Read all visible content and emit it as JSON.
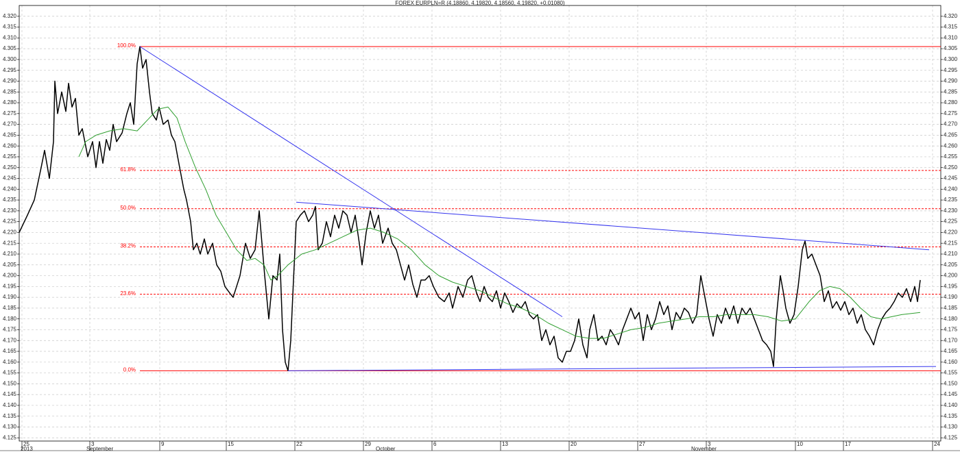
{
  "chart_data": {
    "type": "line",
    "title": "FOREX EURPLN=R (4.18860, 4.19820, 4.18560, 4.19820, +0.01080)",
    "xlim": [
      28,
      1372
    ],
    "ylim": [
      4.1235,
      4.325
    ],
    "grid": true,
    "xticks": [
      {
        "value": 32,
        "label": "25"
      },
      {
        "value": 131,
        "label": "3"
      },
      {
        "value": 233,
        "label": "9"
      },
      {
        "value": 330,
        "label": "15"
      },
      {
        "value": 430,
        "label": "22"
      },
      {
        "value": 530,
        "label": "29"
      },
      {
        "value": 630,
        "label": "6"
      },
      {
        "value": 730,
        "label": "13"
      },
      {
        "value": 830,
        "label": "20"
      },
      {
        "value": 930,
        "label": "27"
      },
      {
        "value": 1030,
        "label": "3"
      },
      {
        "value": 1160,
        "label": "10"
      },
      {
        "value": 1230,
        "label": "17"
      },
      {
        "value": 1360,
        "label": "24"
      }
    ],
    "x_period_labels": [
      {
        "value": 32,
        "label": "2013"
      },
      {
        "value": 128,
        "label": "September"
      },
      {
        "value": 550,
        "label": "October"
      },
      {
        "value": 1010,
        "label": "November"
      }
    ],
    "yticks": [
      4.125,
      {
        "value": 4.13,
        "label": "4.130"
      },
      4.135,
      {
        "value": 4.14,
        "label": "4.140"
      },
      4.145,
      {
        "value": 4.15,
        "label": "4.150"
      },
      4.155,
      {
        "value": 4.16,
        "label": "4.160"
      },
      4.165,
      {
        "value": 4.17,
        "label": "4.170"
      },
      4.175,
      {
        "value": 4.18,
        "label": "4.180"
      },
      4.185,
      {
        "value": 4.19,
        "label": "4.190"
      },
      4.195,
      {
        "value": 4.2,
        "label": "4.200"
      },
      4.205,
      {
        "value": 4.21,
        "label": "4.210"
      },
      4.215,
      {
        "value": 4.22,
        "label": "4.220"
      },
      4.225,
      {
        "value": 4.23,
        "label": "4.230"
      },
      4.235,
      {
        "value": 4.24,
        "label": "4.240"
      },
      4.245,
      {
        "value": 4.25,
        "label": "4.250"
      },
      4.255,
      {
        "value": 4.26,
        "label": "4.260"
      },
      4.265,
      {
        "value": 4.27,
        "label": "4.270"
      },
      4.275,
      {
        "value": 4.28,
        "label": "4.280"
      },
      4.285,
      {
        "value": 4.29,
        "label": "4.290"
      },
      4.295,
      {
        "value": 4.3,
        "label": "4.300"
      },
      4.305,
      {
        "value": 4.31,
        "label": "4.310"
      },
      4.315,
      {
        "value": 4.32,
        "label": "4.320"
      }
    ],
    "series": [
      {
        "color": "#000000",
        "x": [
          28,
          40,
          50,
          60,
          65,
          72,
          78,
          80,
          84,
          90,
          96,
          100,
          105,
          110,
          115,
          120,
          128,
          135,
          140,
          145,
          150,
          155,
          160,
          165,
          170,
          178,
          185,
          190,
          195,
          200,
          204,
          208,
          213,
          218,
          222,
          228,
          232,
          238,
          245,
          250,
          255,
          262,
          268,
          272,
          278,
          282,
          287,
          292,
          298,
          303,
          310,
          316,
          322,
          328,
          335,
          340,
          345,
          350,
          358,
          365,
          372,
          378,
          382,
          386,
          392,
          398,
          404,
          408,
          412,
          416,
          420,
          424,
          428,
          432,
          438,
          444,
          450,
          456,
          460,
          464,
          470,
          476,
          482,
          488,
          494,
          500,
          506,
          512,
          518,
          524,
          528,
          534,
          540,
          546,
          552,
          558,
          566,
          572,
          578,
          584,
          590,
          596,
          602,
          608,
          614,
          620,
          626,
          632,
          640,
          648,
          655,
          660,
          668,
          675,
          682,
          688,
          695,
          700,
          706,
          712,
          718,
          724,
          730,
          736,
          742,
          748,
          754,
          760,
          766,
          772,
          778,
          784,
          790,
          796,
          802,
          808,
          814,
          820,
          826,
          832,
          838,
          844,
          850,
          856,
          860,
          866,
          872,
          878,
          884,
          890,
          896,
          902,
          908,
          914,
          920,
          926,
          932,
          938,
          944,
          950,
          956,
          962,
          968,
          974,
          980,
          986,
          992,
          998,
          1004,
          1010,
          1016,
          1022,
          1028,
          1034,
          1040,
          1046,
          1052,
          1058,
          1064,
          1070,
          1076,
          1082,
          1088,
          1094,
          1100,
          1106,
          1112,
          1118,
          1124,
          1128,
          1132,
          1138,
          1142,
          1146,
          1152,
          1158,
          1164,
          1170,
          1174,
          1178,
          1184,
          1190,
          1196,
          1202,
          1208,
          1214,
          1220,
          1226,
          1232,
          1238,
          1244,
          1250,
          1256,
          1262,
          1268,
          1274,
          1280,
          1286,
          1292,
          1298,
          1304,
          1310,
          1316,
          1322,
          1328,
          1334,
          1338,
          1342
        ],
        "values": [
          4.22,
          4.228,
          4.235,
          4.25,
          4.258,
          4.245,
          4.262,
          4.29,
          4.275,
          4.285,
          4.276,
          4.289,
          4.278,
          4.282,
          4.265,
          4.268,
          4.255,
          4.262,
          4.25,
          4.262,
          4.252,
          4.263,
          4.258,
          4.27,
          4.262,
          4.266,
          4.275,
          4.28,
          4.27,
          4.298,
          4.306,
          4.296,
          4.3,
          4.285,
          4.275,
          4.272,
          4.278,
          4.27,
          4.272,
          4.265,
          4.262,
          4.25,
          4.24,
          4.235,
          4.225,
          4.212,
          4.215,
          4.21,
          4.217,
          4.21,
          4.215,
          4.205,
          4.202,
          4.195,
          4.192,
          4.19,
          4.195,
          4.2,
          4.215,
          4.208,
          4.212,
          4.23,
          4.215,
          4.2,
          4.18,
          4.2,
          4.198,
          4.21,
          4.175,
          4.16,
          4.156,
          4.17,
          4.198,
          4.225,
          4.228,
          4.23,
          4.225,
          4.228,
          4.232,
          4.212,
          4.215,
          4.225,
          4.218,
          4.228,
          4.222,
          4.23,
          4.228,
          4.22,
          4.228,
          4.215,
          4.205,
          4.22,
          4.23,
          4.222,
          4.228,
          4.215,
          4.222,
          4.215,
          4.212,
          4.205,
          4.198,
          4.205,
          4.196,
          4.19,
          4.198,
          4.198,
          4.2,
          4.195,
          4.19,
          4.188,
          4.192,
          4.185,
          4.195,
          4.19,
          4.198,
          4.2,
          4.192,
          4.188,
          4.195,
          4.19,
          4.188,
          4.193,
          4.185,
          4.192,
          4.188,
          4.183,
          4.187,
          4.185,
          4.188,
          4.182,
          4.18,
          4.182,
          4.17,
          4.175,
          4.168,
          4.172,
          4.162,
          4.16,
          4.165,
          4.165,
          4.17,
          4.18,
          4.168,
          4.162,
          4.175,
          4.182,
          4.17,
          4.172,
          4.168,
          4.175,
          4.172,
          4.168,
          4.175,
          4.18,
          4.185,
          4.18,
          4.183,
          4.17,
          4.182,
          4.175,
          4.18,
          4.188,
          4.182,
          4.186,
          4.175,
          4.183,
          4.18,
          4.185,
          4.183,
          4.178,
          4.182,
          4.2,
          4.19,
          4.18,
          4.172,
          4.182,
          4.178,
          4.185,
          4.18,
          4.186,
          4.178,
          4.185,
          4.182,
          4.185,
          4.18,
          4.175,
          4.17,
          4.168,
          4.165,
          4.158,
          4.18,
          4.2,
          4.193,
          4.185,
          4.178,
          4.182,
          4.195,
          4.212,
          4.216,
          4.208,
          4.21,
          4.205,
          4.2,
          4.188,
          4.193,
          4.185,
          4.188,
          4.184,
          4.188,
          4.182,
          4.185,
          4.178,
          4.182,
          4.175,
          4.172,
          4.168,
          4.175,
          4.18,
          4.183,
          4.185,
          4.188,
          4.192,
          4.19,
          4.194,
          4.188,
          4.195,
          4.188,
          4.198
        ]
      },
      {
        "color": "#2e9e2e",
        "x": [
          115,
          125,
          140,
          160,
          180,
          200,
          215,
          230,
          245,
          258,
          270,
          285,
          300,
          315,
          330,
          345,
          360,
          372,
          385,
          395,
          405,
          420,
          440,
          460,
          480,
          500,
          520,
          540,
          560,
          580,
          600,
          620,
          640,
          660,
          680,
          700,
          720,
          740,
          760,
          780,
          800,
          820,
          840,
          860,
          880,
          900,
          920,
          940,
          960,
          980,
          1000,
          1020,
          1040,
          1060,
          1080,
          1100,
          1120,
          1140,
          1160,
          1180,
          1195,
          1210,
          1225,
          1240,
          1255,
          1270,
          1285,
          1300,
          1315,
          1342
        ],
        "values": [
          4.255,
          4.262,
          4.265,
          4.267,
          4.268,
          4.267,
          4.272,
          4.277,
          4.278,
          4.273,
          4.262,
          4.25,
          4.24,
          4.228,
          4.22,
          4.212,
          4.207,
          4.208,
          4.205,
          4.198,
          4.2,
          4.205,
          4.21,
          4.212,
          4.215,
          4.218,
          4.221,
          4.222,
          4.22,
          4.217,
          4.212,
          4.205,
          4.2,
          4.197,
          4.195,
          4.193,
          4.19,
          4.187,
          4.185,
          4.182,
          4.178,
          4.175,
          4.172,
          4.171,
          4.171,
          4.173,
          4.175,
          4.176,
          4.178,
          4.179,
          4.18,
          4.181,
          4.181,
          4.182,
          4.182,
          4.182,
          4.181,
          4.179,
          4.18,
          4.188,
          4.193,
          4.195,
          4.194,
          4.19,
          4.185,
          4.181,
          4.18,
          4.181,
          4.182,
          4.183
        ]
      }
    ],
    "trendlines": [
      {
        "color": "#3333ee",
        "x": [
          204,
          820
        ],
        "values": [
          4.306,
          4.181
        ]
      },
      {
        "color": "#3333ee",
        "x": [
          432,
          1355
        ],
        "values": [
          4.234,
          4.212
        ]
      },
      {
        "color": "#3333ee",
        "x": [
          420,
          1365
        ],
        "values": [
          4.156,
          4.158
        ]
      }
    ],
    "fib": {
      "x": 204,
      "color": "#ff0000",
      "levels": [
        {
          "label": "100.0%",
          "value": 4.306,
          "solid": true
        },
        {
          "label": "61.8%",
          "value": 4.2487,
          "solid": false
        },
        {
          "label": "50.0%",
          "value": 4.231,
          "solid": false
        },
        {
          "label": "38.2%",
          "value": 4.2133,
          "solid": false
        },
        {
          "label": "23.6%",
          "value": 4.1914,
          "solid": false
        },
        {
          "label": "0.0%",
          "value": 4.156,
          "solid": true
        }
      ]
    }
  }
}
